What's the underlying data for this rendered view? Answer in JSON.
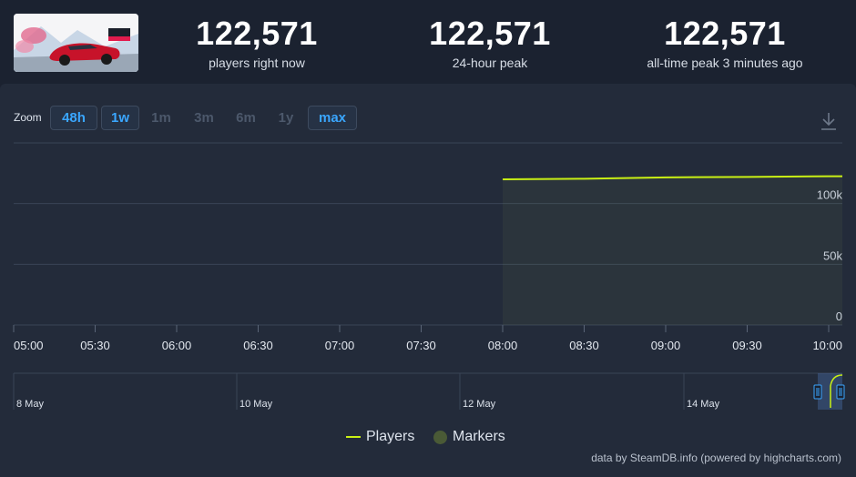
{
  "game": {
    "thumbnail_icon": "game-cover-art"
  },
  "stats": [
    {
      "value": "122,571",
      "label": "players right now"
    },
    {
      "value": "122,571",
      "label": "24-hour peak"
    },
    {
      "value": "122,571",
      "label": "all-time peak 3 minutes ago"
    }
  ],
  "zoom": {
    "label": "Zoom",
    "buttons": [
      {
        "label": "48h",
        "active": true
      },
      {
        "label": "1w",
        "active": true
      },
      {
        "label": "1m",
        "active": false
      },
      {
        "label": "3m",
        "active": false
      },
      {
        "label": "6m",
        "active": false
      },
      {
        "label": "1y",
        "active": false
      },
      {
        "label": "max",
        "active": true
      }
    ],
    "download_icon": "download-icon"
  },
  "chart_data": {
    "type": "area",
    "x_ticks": [
      "05:00",
      "05:30",
      "06:00",
      "06:30",
      "07:00",
      "07:30",
      "08:00",
      "08:30",
      "09:00",
      "09:30",
      "10:00"
    ],
    "x_range": [
      "05:00",
      "10:00"
    ],
    "y_ticks": [
      "0",
      "50k",
      "100k"
    ],
    "y_tick_values": [
      0,
      50000,
      100000
    ],
    "ylim": [
      0,
      150000
    ],
    "series": [
      {
        "name": "Players",
        "color": "#c9f014",
        "points": [
          {
            "x": "08:00",
            "y": 120000
          },
          {
            "x": "08:30",
            "y": 120500
          },
          {
            "x": "09:00",
            "y": 121600
          },
          {
            "x": "09:30",
            "y": 122000
          },
          {
            "x": "10:00",
            "y": 122571
          }
        ]
      }
    ],
    "legend": [
      "Players",
      "Markers"
    ],
    "legend_placement": "bottom-center",
    "grid": true,
    "navigator": {
      "labels": [
        "8 May",
        "10 May",
        "12 May",
        "14 May"
      ]
    }
  },
  "legend": {
    "players": "Players",
    "markers": "Markers"
  },
  "credits": "data by SteamDB.info (powered by highcharts.com)"
}
